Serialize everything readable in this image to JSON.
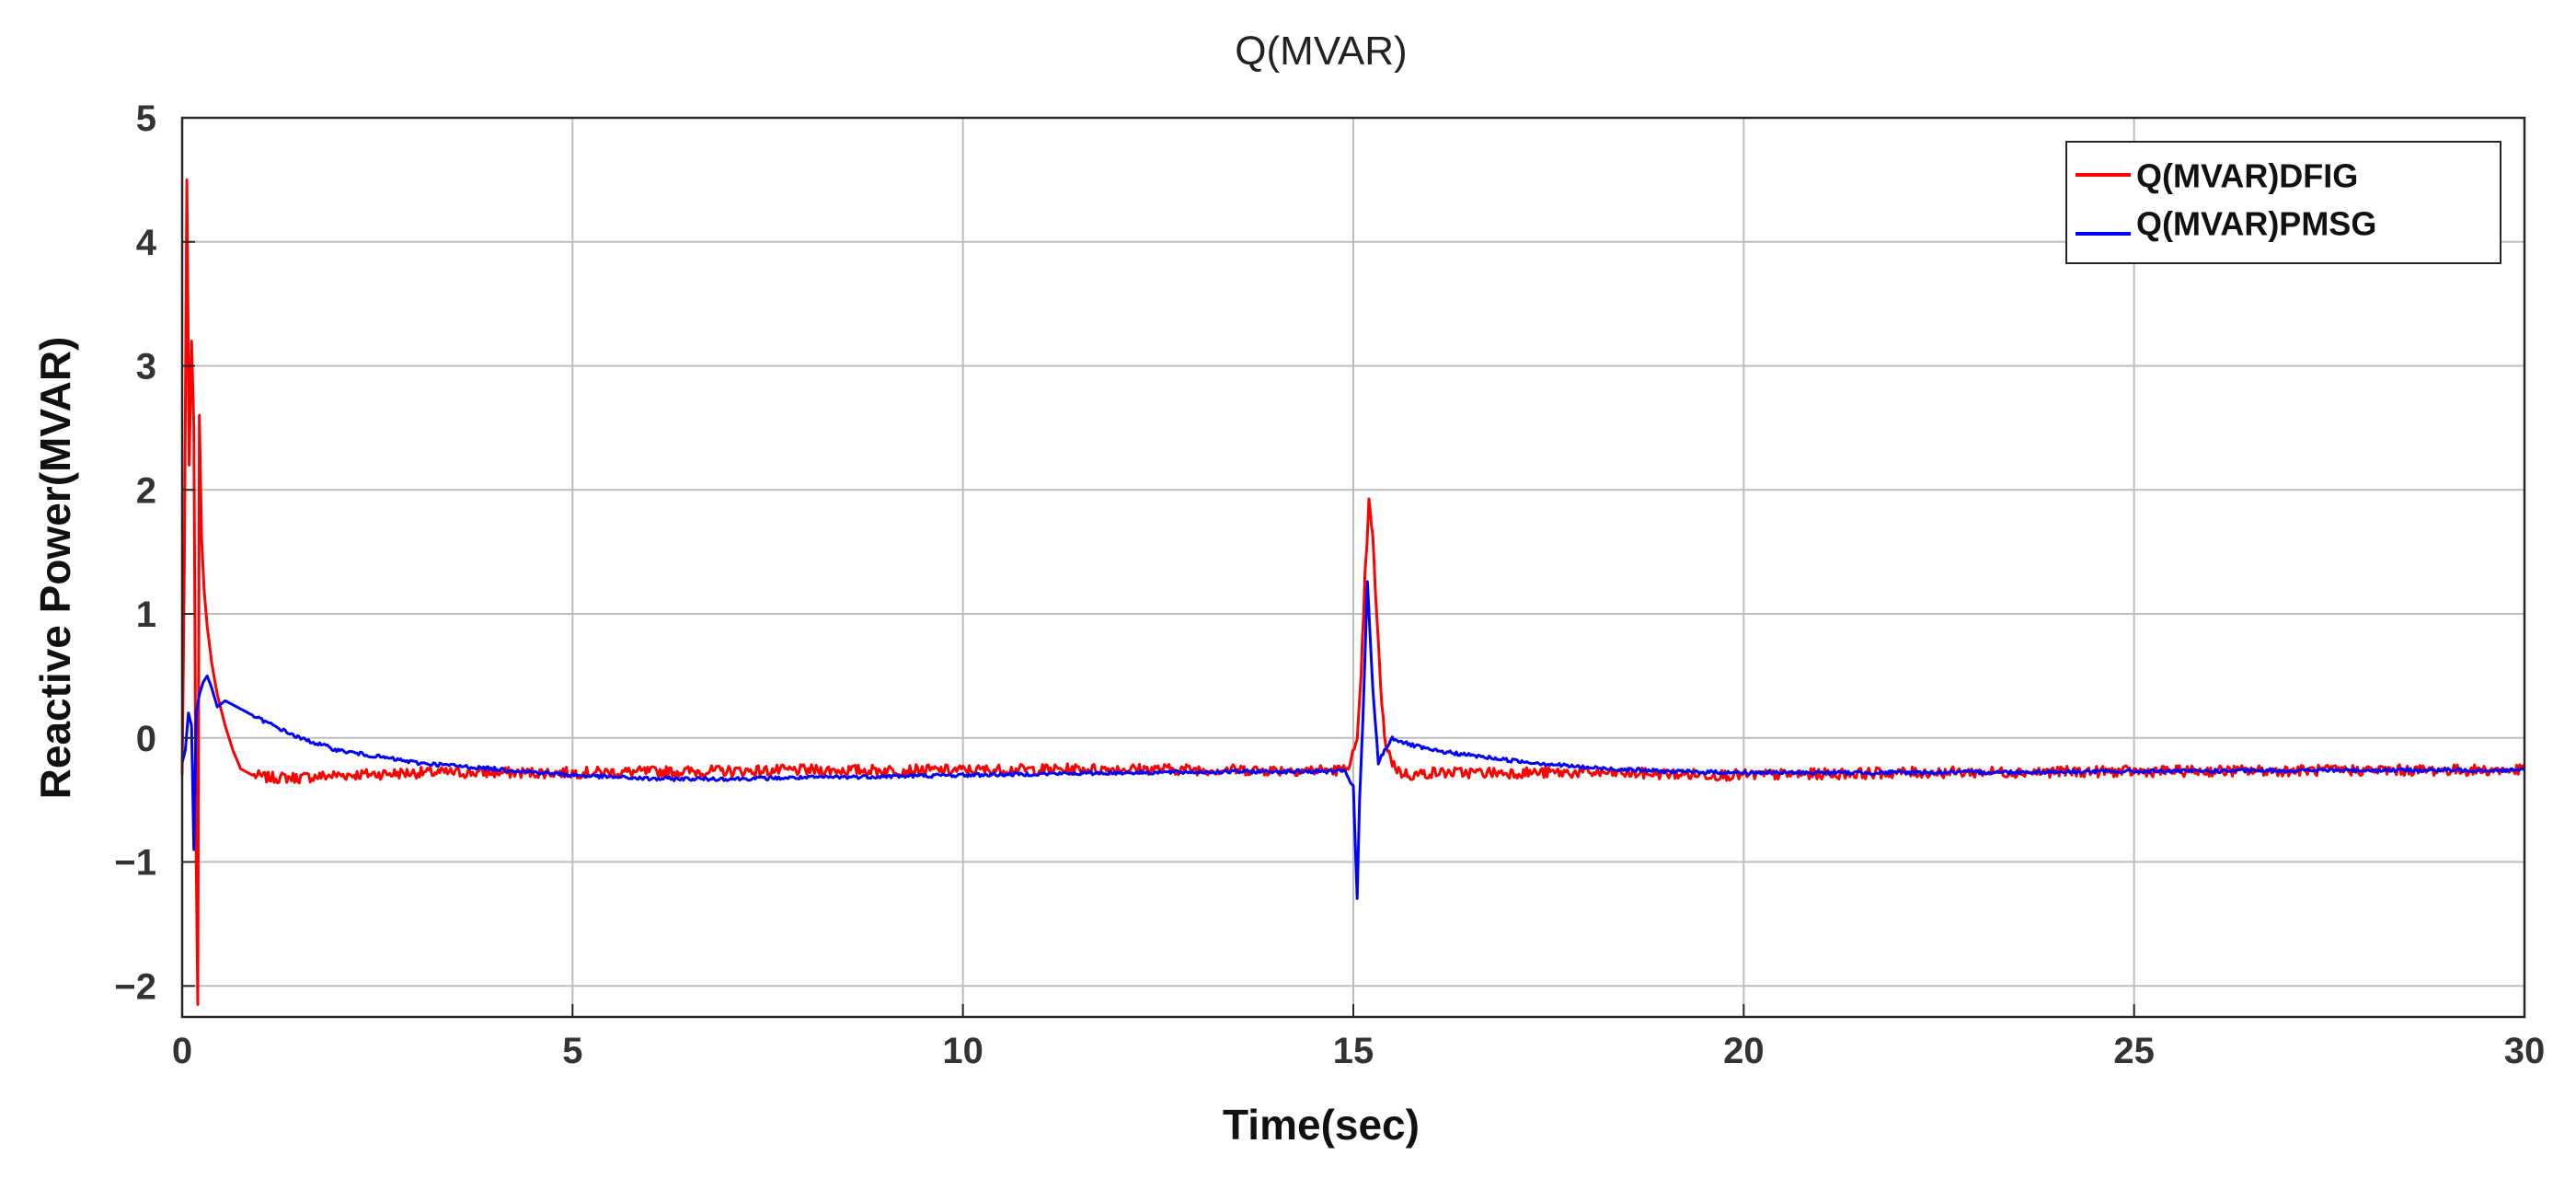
{
  "chart_data": {
    "type": "line",
    "title": "Q(MVAR)",
    "xlabel": "Time(sec)",
    "ylabel": "Reactive Power(MVAR)",
    "xlim": [
      0,
      30
    ],
    "ylim": [
      -2.25,
      5
    ],
    "xticks": [
      "0",
      "5",
      "10",
      "15",
      "20",
      "25",
      "30"
    ],
    "xtick_values": [
      0,
      5,
      10,
      15,
      20,
      25,
      30
    ],
    "yticks": [
      "−2",
      "−1",
      "0",
      "1",
      "2",
      "3",
      "4",
      "5"
    ],
    "ytick_values": [
      -2,
      -1,
      0,
      1,
      2,
      3,
      4,
      5
    ],
    "grid": true,
    "legend_position": "top-right",
    "series": [
      {
        "name": "Q(MVAR)DFIG",
        "color": "#ff0000",
        "x": [
          0,
          0.03,
          0.06,
          0.09,
          0.12,
          0.15,
          0.18,
          0.2,
          0.22,
          0.25,
          0.28,
          0.32,
          0.38,
          0.45,
          0.55,
          0.65,
          0.75,
          0.9,
          1.1,
          1.5,
          2,
          3,
          5,
          8,
          10,
          12,
          14,
          14.9,
          15.05,
          15.1,
          15.15,
          15.2,
          15.25,
          15.3,
          15.35,
          15.4,
          15.5,
          15.6,
          15.75,
          16,
          17,
          18,
          20,
          22,
          25,
          28,
          30
        ],
        "y": [
          -0.3,
          1.5,
          4.5,
          2.2,
          3.2,
          2.5,
          -1.0,
          -2.15,
          2.6,
          1.6,
          1.2,
          0.9,
          0.6,
          0.35,
          0.1,
          -0.1,
          -0.25,
          -0.3,
          -0.32,
          -0.32,
          -0.3,
          -0.28,
          -0.28,
          -0.26,
          -0.26,
          -0.25,
          -0.26,
          -0.26,
          -0.05,
          0.5,
          1.3,
          1.9,
          1.6,
          1.0,
          0.4,
          0.0,
          -0.2,
          -0.28,
          -0.3,
          -0.28,
          -0.28,
          -0.28,
          -0.3,
          -0.28,
          -0.27,
          -0.26,
          -0.26
        ]
      },
      {
        "name": "Q(MVAR)PMSG",
        "color": "#0000ff",
        "x": [
          0,
          0.04,
          0.08,
          0.12,
          0.15,
          0.18,
          0.22,
          0.27,
          0.32,
          0.38,
          0.45,
          0.55,
          0.7,
          1,
          1.5,
          2,
          3,
          4,
          5,
          6,
          7,
          8,
          10,
          12,
          14,
          14.9,
          15.0,
          15.05,
          15.08,
          15.12,
          15.18,
          15.25,
          15.32,
          15.4,
          15.5,
          15.7,
          16,
          17,
          18,
          19,
          20,
          22,
          25,
          28,
          30
        ],
        "y": [
          -0.2,
          -0.1,
          0.2,
          0.1,
          -0.9,
          0.2,
          0.35,
          0.45,
          0.5,
          0.4,
          0.25,
          0.3,
          0.25,
          0.15,
          0.0,
          -0.1,
          -0.2,
          -0.25,
          -0.3,
          -0.33,
          -0.33,
          -0.32,
          -0.3,
          -0.28,
          -0.27,
          -0.27,
          -0.4,
          -1.3,
          -0.5,
          0.1,
          1.25,
          0.4,
          -0.2,
          -0.1,
          0.0,
          -0.05,
          -0.1,
          -0.18,
          -0.24,
          -0.27,
          -0.28,
          -0.28,
          -0.27,
          -0.26,
          -0.26
        ]
      }
    ]
  }
}
